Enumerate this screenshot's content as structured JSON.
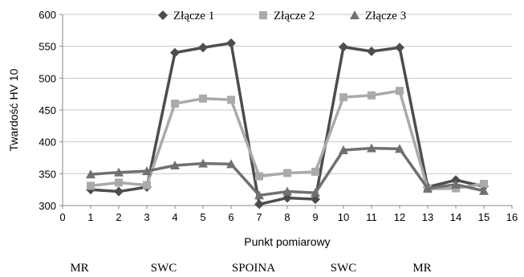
{
  "chart_data": {
    "type": "line",
    "title": "",
    "xlabel": "Punkt pomiarowy",
    "ylabel": "Twardość  HV 10",
    "xlim": [
      0,
      16
    ],
    "ylim": [
      300,
      600
    ],
    "x_ticks": [
      "0",
      "1",
      "2",
      "3",
      "4",
      "5",
      "6",
      "7",
      "8",
      "9",
      "10",
      "11",
      "12",
      "13",
      "14",
      "15",
      "16"
    ],
    "y_ticks": [
      "300",
      "350",
      "400",
      "450",
      "500",
      "550",
      "600"
    ],
    "grid": "horizontal",
    "legend_position": "top",
    "x": [
      1,
      2,
      3,
      4,
      5,
      6,
      7,
      8,
      9,
      10,
      11,
      12,
      13,
      14,
      15
    ],
    "series": [
      {
        "name": "Złącze 1",
        "color": "#4d4d4d",
        "marker": "diamond",
        "values": [
          325,
          322,
          329,
          540,
          548,
          555,
          302,
          312,
          310,
          549,
          542,
          548,
          329,
          340,
          330
        ]
      },
      {
        "name": "Złącze 2",
        "color": "#aaaaaa",
        "marker": "square",
        "values": [
          331,
          336,
          332,
          460,
          468,
          466,
          346,
          351,
          353,
          470,
          473,
          480,
          326,
          327,
          334
        ]
      },
      {
        "name": "Złącze 3",
        "color": "#707070",
        "marker": "triangle",
        "values": [
          349,
          352,
          354,
          363,
          366,
          365,
          316,
          322,
          320,
          387,
          390,
          389,
          327,
          333,
          323
        ]
      }
    ],
    "zone_labels": [
      {
        "text": "MR",
        "at": 0.6
      },
      {
        "text": "SWC",
        "at": 3.6
      },
      {
        "text": "SPOINA",
        "at": 6.8
      },
      {
        "text": "SWC",
        "at": 10.0
      },
      {
        "text": "MR",
        "at": 12.8
      }
    ]
  }
}
